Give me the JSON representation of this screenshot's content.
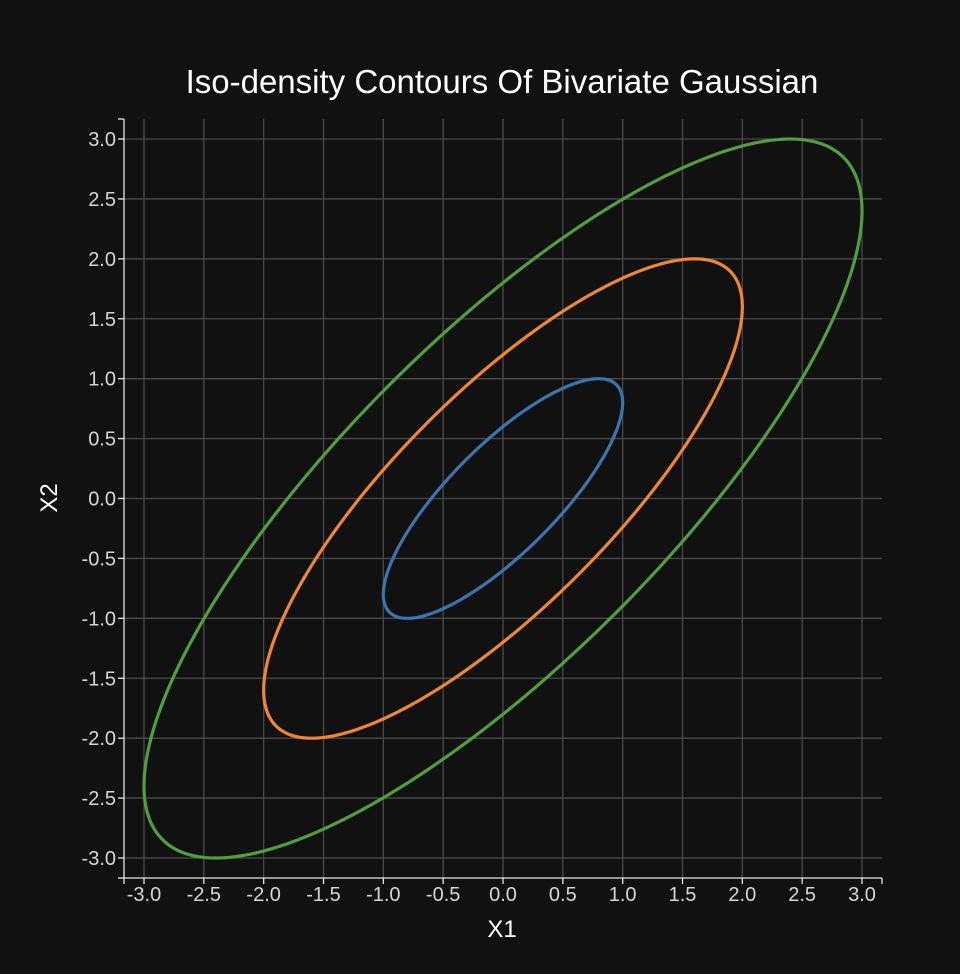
{
  "chart_data": {
    "type": "line",
    "title": "Iso-density Contours Of Bivariate Gaussian",
    "xlabel": "X1",
    "ylabel": "X2",
    "xlim": [
      -3.0,
      3.0
    ],
    "ylim": [
      -3.0,
      3.0
    ],
    "x_ticks": [
      "-3.0",
      "-2.5",
      "-2.0",
      "-1.5",
      "-1.0",
      "-0.5",
      "0.0",
      "0.5",
      "1.0",
      "1.5",
      "2.0",
      "2.5",
      "3.0"
    ],
    "y_ticks": [
      "3.0",
      "2.5",
      "2.0",
      "1.5",
      "1.0",
      "0.5",
      "0.0",
      "-0.5",
      "-1.0",
      "-1.5",
      "-2.0",
      "-2.5",
      "-3.0"
    ],
    "grid": true,
    "correlation": 0.8,
    "series": [
      {
        "level": 1,
        "color": "#3b75af",
        "x_extent": [
          -1.0,
          1.0
        ],
        "y_extent": [
          -1.0,
          1.0
        ]
      },
      {
        "level": 2,
        "color": "#ef8636",
        "x_extent": [
          -2.0,
          2.0
        ],
        "y_extent": [
          -2.0,
          2.0
        ]
      },
      {
        "level": 3,
        "color": "#519e3e",
        "x_extent": [
          -3.0,
          3.0
        ],
        "y_extent": [
          -3.0,
          3.0
        ]
      }
    ]
  }
}
